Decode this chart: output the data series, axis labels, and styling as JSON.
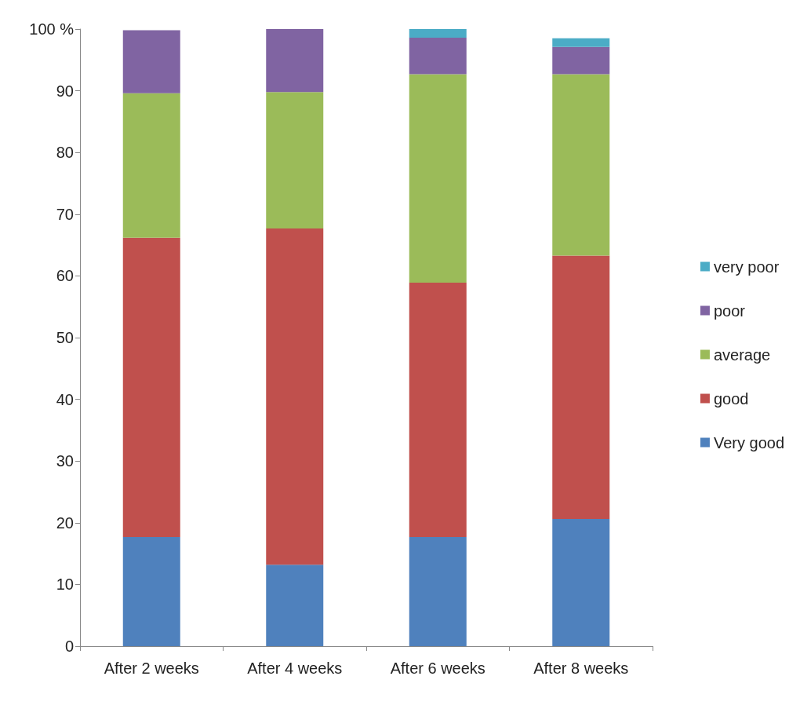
{
  "chart_data": {
    "type": "bar",
    "stacked": true,
    "categories": [
      "After 2 weeks",
      "After 4 weeks",
      "After 6 weeks",
      "After 8 weeks"
    ],
    "series": [
      {
        "name": "Very good",
        "color": "#4f81bd",
        "values": [
          17.7,
          13.2,
          17.7,
          20.6
        ]
      },
      {
        "name": "good",
        "color": "#c0504d",
        "values": [
          48.5,
          54.5,
          41.2,
          42.7
        ]
      },
      {
        "name": "average",
        "color": "#9bbb59",
        "values": [
          23.4,
          22.1,
          33.8,
          29.4
        ]
      },
      {
        "name": "poor",
        "color": "#8064a2",
        "values": [
          10.2,
          10.2,
          5.9,
          4.4
        ]
      },
      {
        "name": "very poor",
        "color": "#4bacc6",
        "values": [
          0,
          0,
          1.4,
          1.4
        ]
      }
    ],
    "ylim": [
      0,
      100
    ],
    "yticks": [
      0,
      10,
      20,
      30,
      40,
      50,
      60,
      70,
      80,
      90,
      {
        "value": 100,
        "label": "100 %"
      }
    ],
    "grid": false,
    "legend": "right"
  }
}
